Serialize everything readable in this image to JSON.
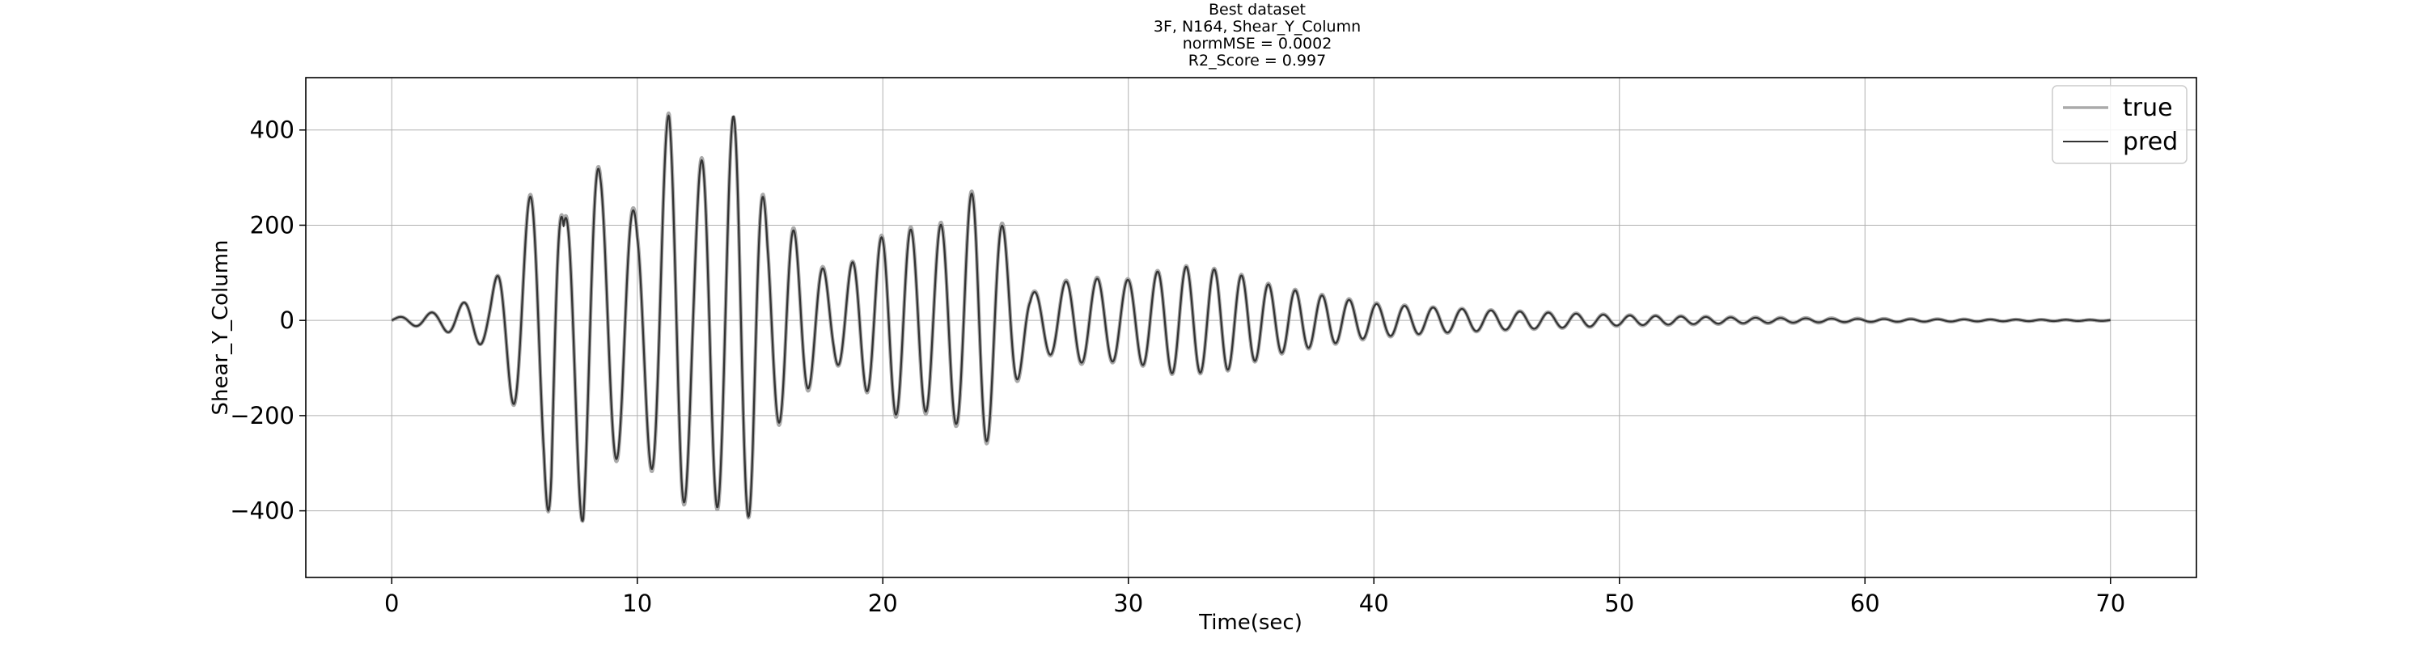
{
  "title_lines": [
    "Best dataset",
    "3F, N164, Shear_Y_Column",
    "normMSE = 0.0002",
    "R2_Score = 0.997"
  ],
  "chart_data": {
    "type": "line",
    "title": "Best dataset\n3F, N164, Shear_Y_Column\nnormMSE = 0.0002\nR2_Score = 0.997",
    "xlabel": "Time(sec)",
    "ylabel": "Shear_Y_Column",
    "xlim": [
      -3.5,
      73.5
    ],
    "ylim": [
      -540,
      510
    ],
    "xticks": [
      0,
      10,
      20,
      30,
      40,
      50,
      60,
      70
    ],
    "yticks": [
      -400,
      -200,
      0,
      200,
      400
    ],
    "x_tick_labels": [
      "0",
      "10",
      "20",
      "30",
      "40",
      "50",
      "60",
      "70"
    ],
    "y_tick_labels": [
      "−400",
      "−200",
      "0",
      "200",
      "400"
    ],
    "grid": true,
    "legend": "top-right",
    "x_start": 0,
    "x_end": 70,
    "colors": {
      "true": "#aaaaaa",
      "pred": "#333333"
    },
    "series": [
      {
        "name": "true",
        "x": [
          0,
          2,
          4,
          6,
          6.2,
          6.5,
          7,
          7.8,
          8.5,
          9.4,
          10,
          11.3,
          11.8,
          12.3,
          13,
          13.6,
          14.1,
          14.7,
          15.3,
          16,
          17,
          18,
          19,
          20.5,
          21.3,
          22.1,
          23,
          23.8,
          24.5,
          25.2,
          26,
          27,
          28,
          30,
          32,
          34,
          36,
          38,
          40,
          42,
          45,
          50,
          55,
          60,
          65,
          70
        ],
        "envelope": [
          5,
          20,
          60,
          320,
          340,
          490,
          210,
          450,
          320,
          300,
          225,
          455,
          430,
          305,
          410,
          410,
          460,
          415,
          220,
          230,
          150,
          90,
          140,
          210,
          200,
          205,
          230,
          295,
          250,
          175,
          60,
          80,
          95,
          90,
          120,
          110,
          75,
          55,
          38,
          30,
          22,
          12,
          7,
          4,
          2,
          1
        ]
      },
      {
        "name": "pred",
        "x": [
          0,
          2,
          4,
          6,
          6.2,
          6.5,
          7,
          7.8,
          8.5,
          9.4,
          10,
          11.3,
          11.8,
          12.3,
          13,
          13.6,
          14.1,
          14.7,
          15.3,
          16,
          17,
          18,
          19,
          20.5,
          21.3,
          22.1,
          23,
          23.8,
          24.5,
          25.2,
          26,
          27,
          28,
          30,
          32,
          34,
          36,
          38,
          40,
          42,
          45,
          50,
          55,
          60,
          65,
          70
        ],
        "envelope": [
          5,
          20,
          60,
          315,
          335,
          490,
          205,
          450,
          315,
          295,
          220,
          450,
          425,
          300,
          405,
          405,
          465,
          410,
          215,
          225,
          145,
          88,
          138,
          205,
          195,
          200,
          225,
          290,
          245,
          170,
          58,
          78,
          92,
          88,
          118,
          108,
          73,
          53,
          36,
          29,
          21,
          11,
          6,
          3,
          2,
          1
        ]
      }
    ]
  }
}
